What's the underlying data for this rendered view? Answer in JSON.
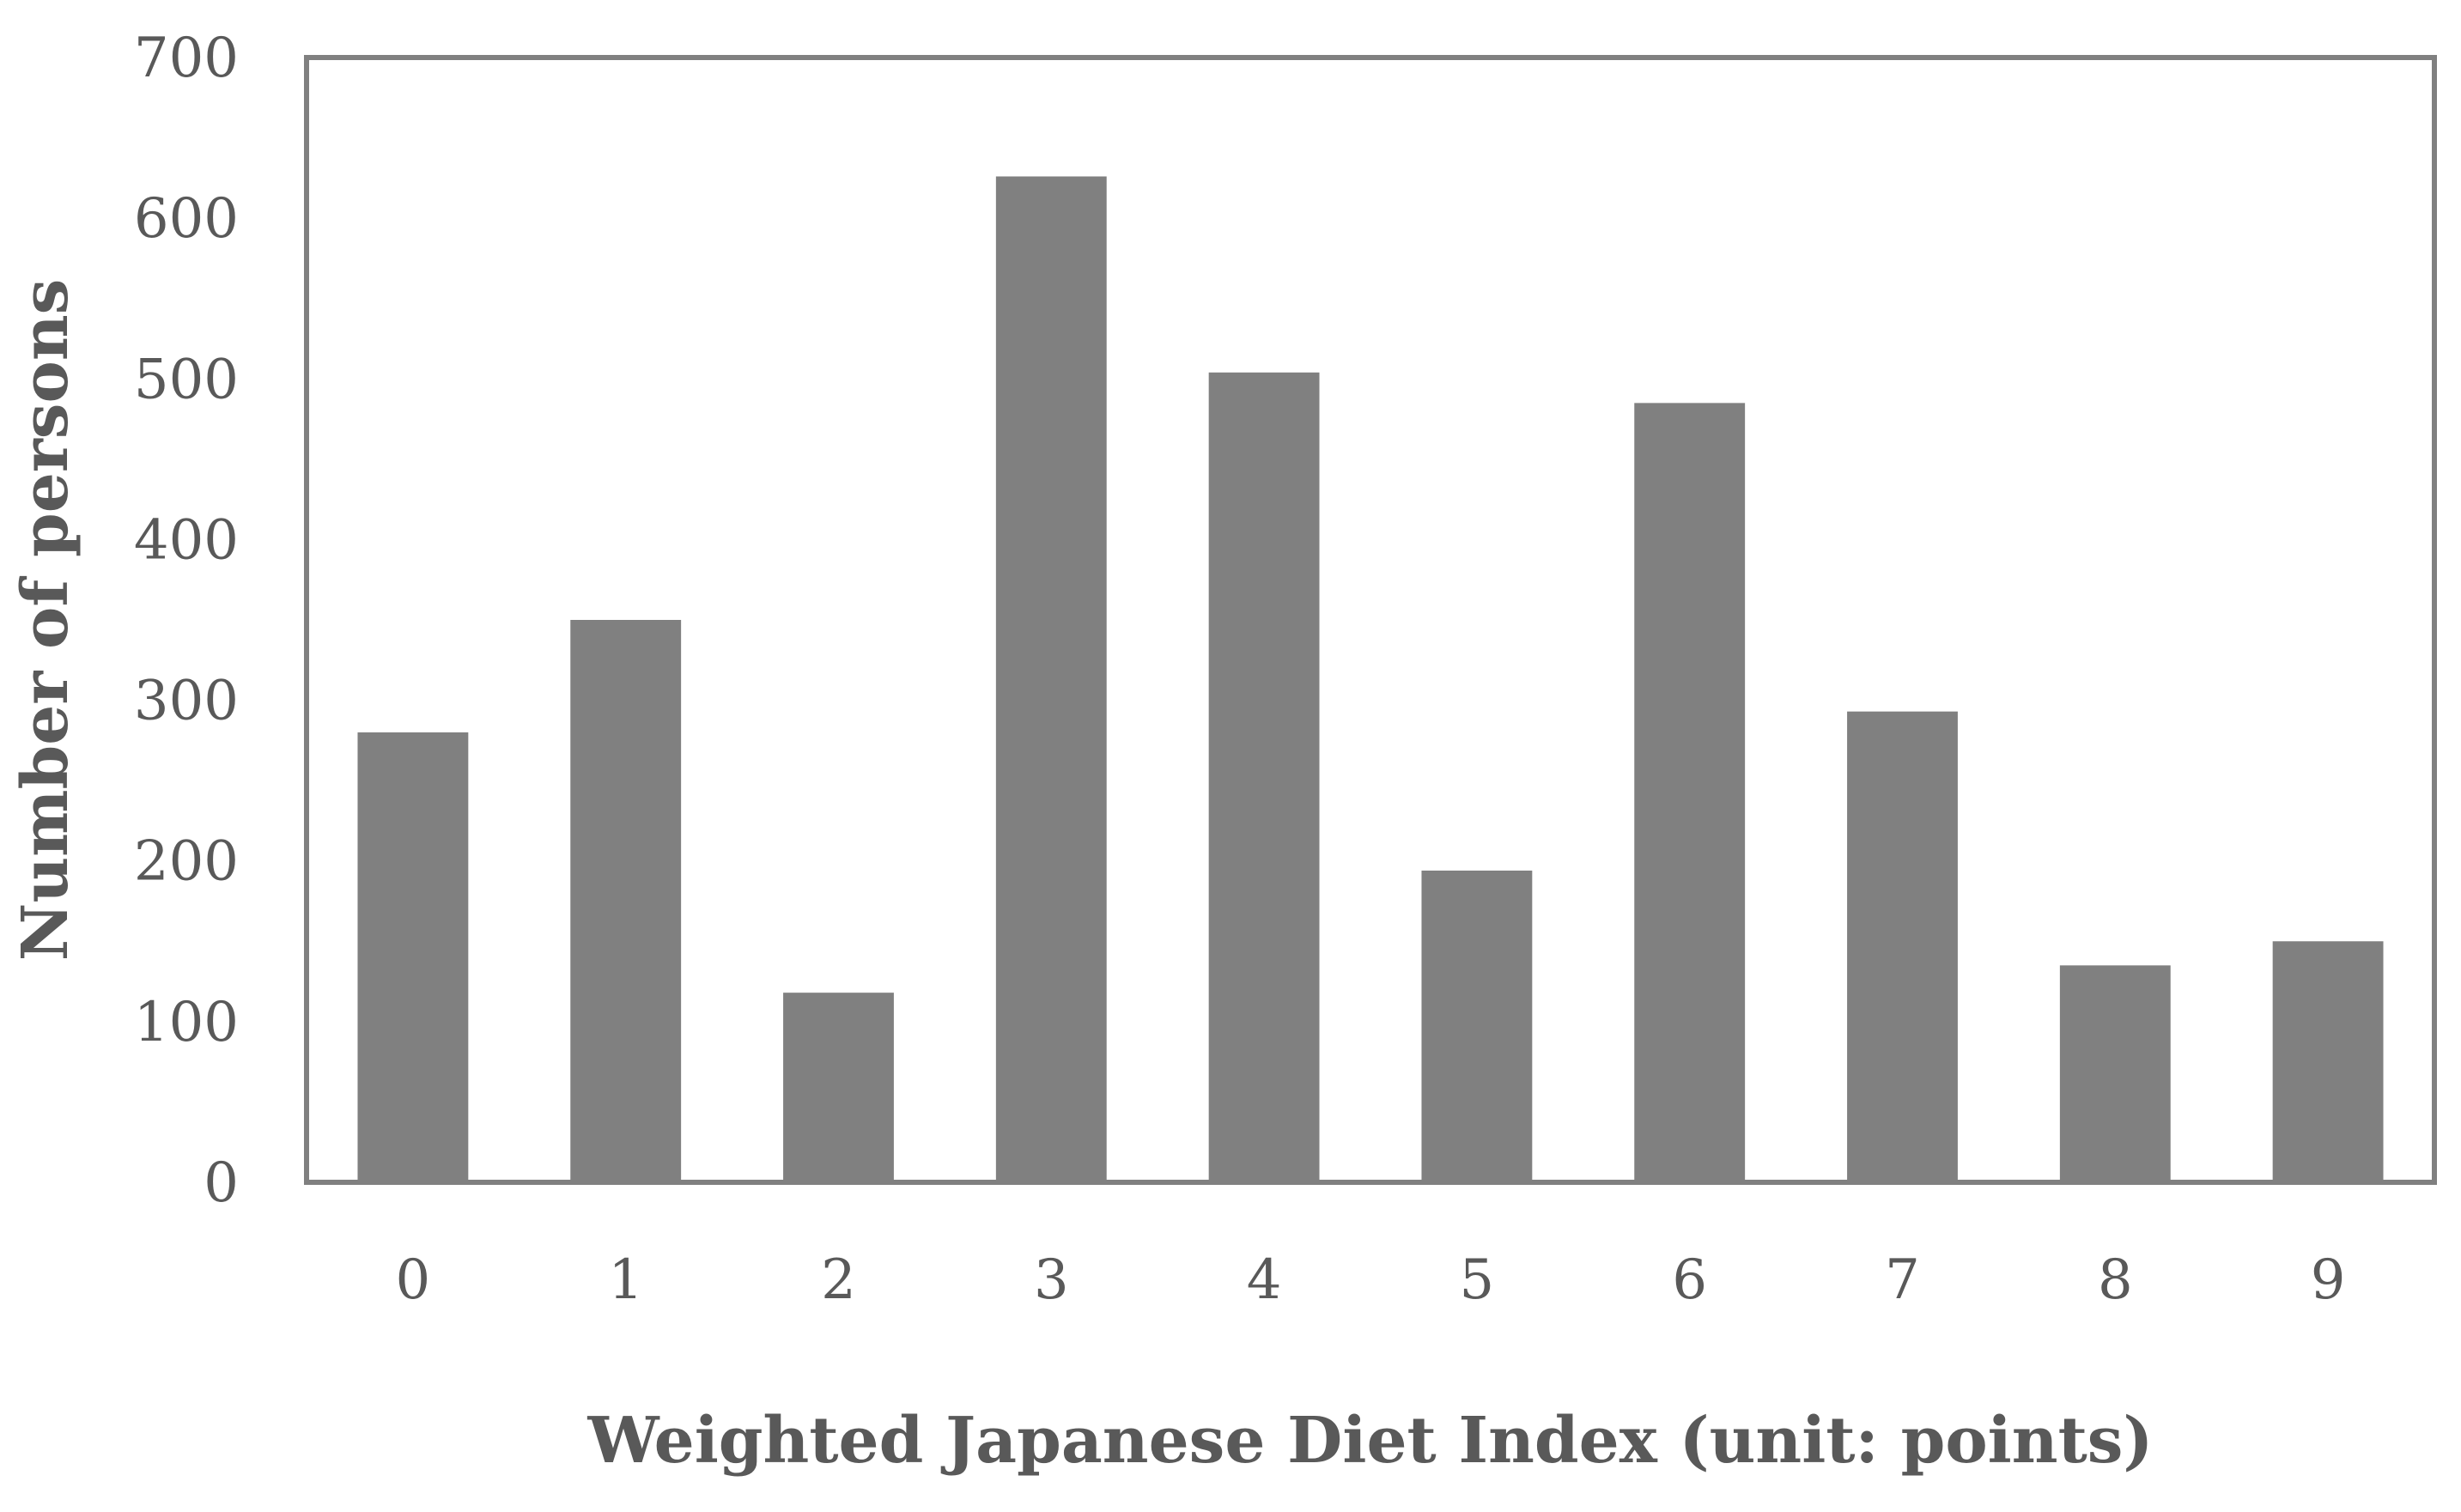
{
  "chart_data": {
    "type": "bar",
    "title": "",
    "xlabel": "Weighted Japanese Diet Index (unit: points)",
    "ylabel": "Number of persons",
    "categories": [
      "0",
      "1",
      "2",
      "3",
      "4",
      "5",
      "6",
      "7",
      "8",
      "9"
    ],
    "values": [
      280,
      350,
      118,
      626,
      504,
      194,
      485,
      293,
      135,
      150
    ],
    "ylim": [
      0,
      700
    ],
    "yticks": [
      0,
      100,
      200,
      300,
      400,
      500,
      600,
      700
    ],
    "grid": false,
    "legend": "none",
    "colors": {
      "bar": "#808080",
      "axis": "#808080",
      "text": "#595959"
    }
  }
}
